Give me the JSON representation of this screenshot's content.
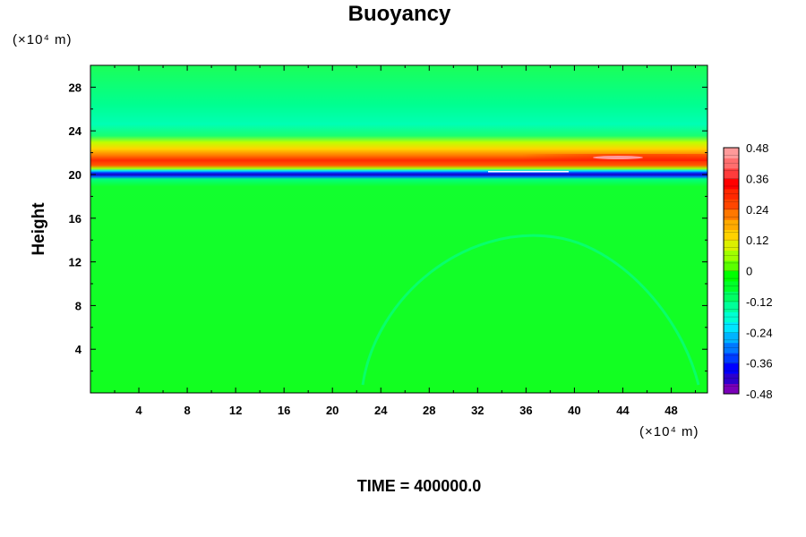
{
  "chart_data": {
    "type": "heatmap",
    "title": "Buoyancy",
    "ylabel": "Height",
    "xlabel": "",
    "x_unit": "(×10⁴ m)",
    "y_unit": "(×10⁴ m)",
    "xlim": [
      0,
      51
    ],
    "ylim": [
      0,
      30
    ],
    "x_ticks": [
      "4",
      "8",
      "12",
      "16",
      "20",
      "24",
      "28",
      "32",
      "36",
      "40",
      "44",
      "48"
    ],
    "y_ticks": [
      "4",
      "8",
      "12",
      "16",
      "20",
      "24",
      "28"
    ],
    "colorbar": {
      "range": [
        -0.48,
        0.48
      ],
      "levels": 32,
      "tick_labels": [
        "0.48",
        "0.36",
        "0.24",
        "0.12",
        "0",
        "-0.12",
        "-0.24",
        "-0.36",
        "-0.48"
      ],
      "colors": [
        "#7a00b8",
        "#2e00cc",
        "#0000ff",
        "#003cff",
        "#0078ff",
        "#00b4ff",
        "#00e6ff",
        "#00ffd2",
        "#00ff9a",
        "#00ff64",
        "#00ff2a",
        "#00ff00",
        "#5aff00",
        "#a0ff00",
        "#dcf000",
        "#ffd200",
        "#ffaa00",
        "#ff7800",
        "#ff4600",
        "#ff2800",
        "#ff0000",
        "#ff3c3c",
        "#ff6e6e",
        "#ff9a9a"
      ]
    },
    "field_summary": {
      "background_value": 0,
      "bands": [
        {
          "height": 20.3,
          "value": -0.42
        },
        {
          "height": 20.8,
          "value": 0.12
        },
        {
          "height": 21.2,
          "value": 0.4
        },
        {
          "height": 22.0,
          "value": 0.3
        },
        {
          "height": 23.0,
          "value": 0.08
        },
        {
          "height": 24.0,
          "value": -0.04
        },
        {
          "height": 25.0,
          "value": -0.08
        }
      ]
    }
  },
  "footer": {
    "time_text": "TIME = 400000.0"
  }
}
